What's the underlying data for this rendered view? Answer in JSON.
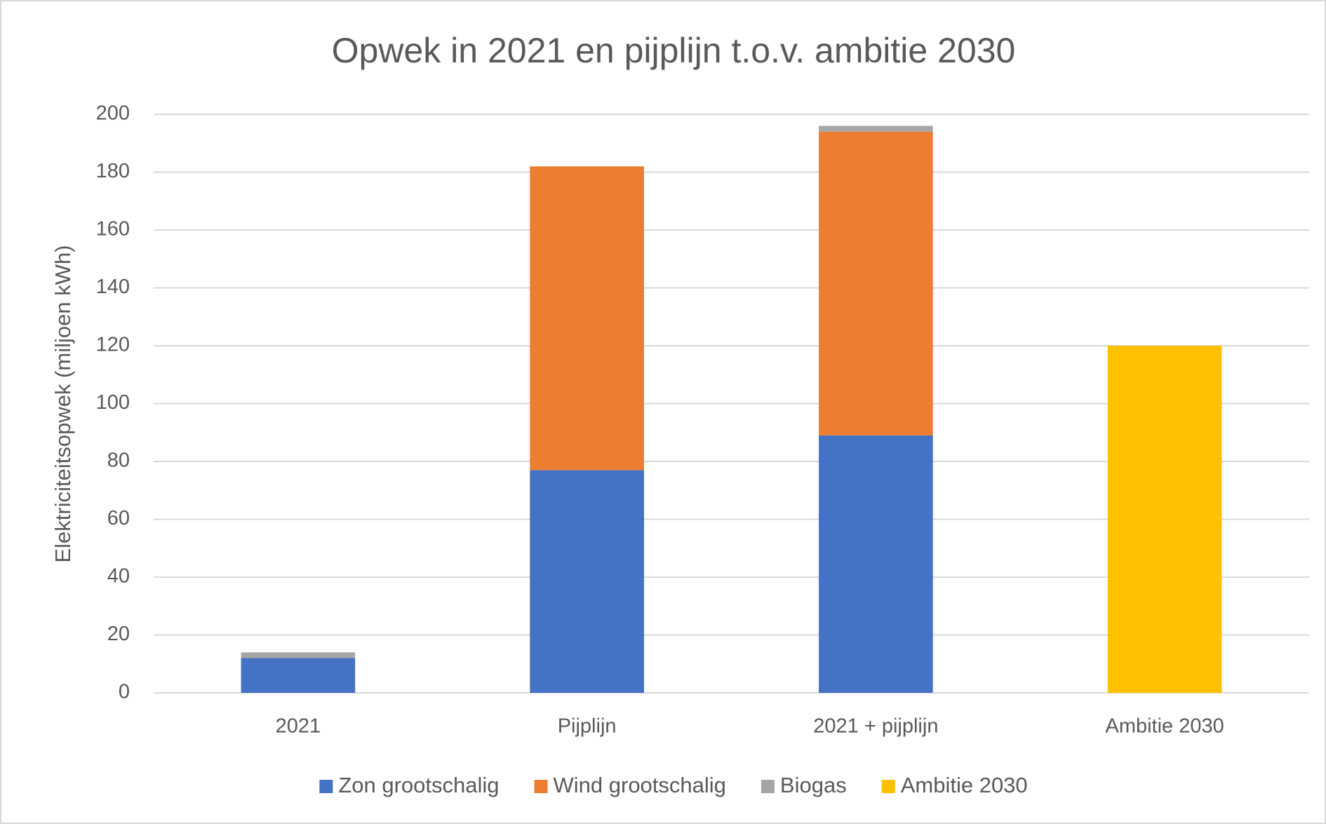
{
  "chart_data": {
    "type": "stacked_bar",
    "title": "Opwek in 2021 en pijplijn t.o.v. ambitie 2030",
    "y_label": "Elektriciteitsopwek  (miljoen kWh)",
    "categories": [
      "2021",
      "Pijplijn",
      "2021 + pijplijn",
      "Ambitie 2030"
    ],
    "series": [
      {
        "name": "Zon grootschalig",
        "color": "#4472c4",
        "values": [
          12,
          77,
          89,
          0
        ]
      },
      {
        "name": "Wind grootschalig",
        "color": "#ed7d31",
        "values": [
          0,
          105,
          105,
          0
        ]
      },
      {
        "name": "Biogas",
        "color": "#a5a5a5",
        "values": [
          2,
          0,
          2,
          0
        ]
      },
      {
        "name": "Ambitie 2030",
        "color": "#ffc000",
        "values": [
          0,
          0,
          0,
          120
        ]
      }
    ],
    "ylim": [
      0,
      200
    ],
    "yticks": [
      0,
      20,
      40,
      60,
      80,
      100,
      120,
      140,
      160,
      180,
      200
    ],
    "grid": true,
    "legend": "bottom"
  }
}
